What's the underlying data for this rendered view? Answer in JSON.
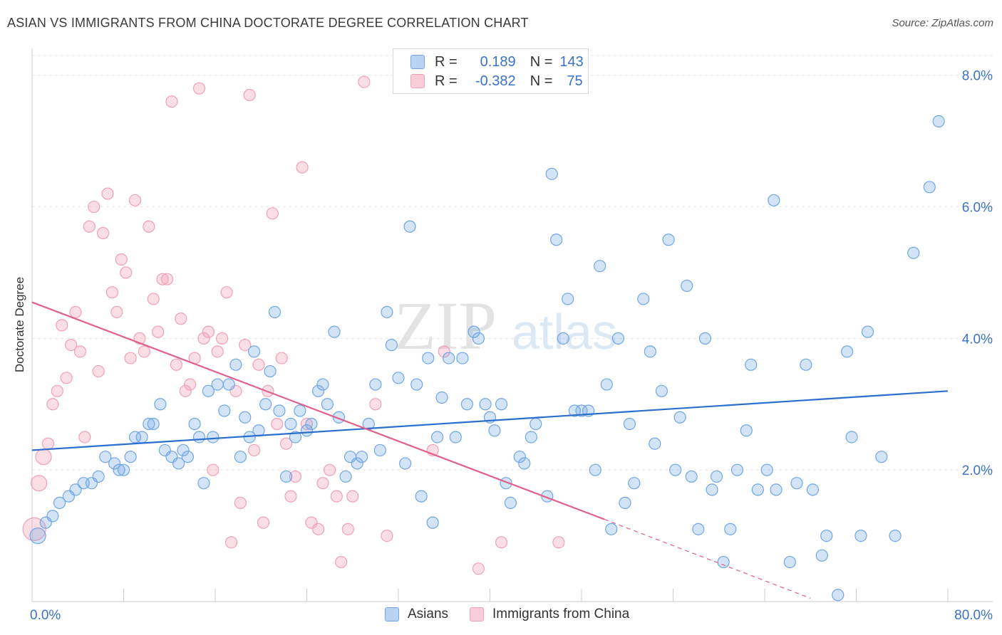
{
  "title": "ASIAN VS IMMIGRANTS FROM CHINA DOCTORATE DEGREE CORRELATION CHART",
  "source": "Source: ZipAtlas.com",
  "watermark": {
    "zip": "ZIP",
    "atlas": "atlas"
  },
  "colors": {
    "asians": "#6fa6e6",
    "china": "#f0a0b8",
    "asians_line": "#2b6fce",
    "china_line": "#e0608c",
    "axis_text": "#3a73c8"
  },
  "legend": {
    "rows": [
      {
        "r_label": "R =",
        "r_value": "0.189",
        "n_label": "N =",
        "n_value": "143"
      },
      {
        "r_label": "R =",
        "r_value": "-0.382",
        "n_label": "N =",
        "n_value": "75"
      }
    ],
    "bottom": [
      "Asians",
      "Immigrants from China"
    ]
  },
  "chart_data": {
    "type": "scatter",
    "title": "ASIAN VS IMMIGRANTS FROM CHINA DOCTORATE DEGREE CORRELATION CHART",
    "xlabel": "",
    "ylabel": "Doctorate Degree",
    "xlim": [
      0,
      80
    ],
    "ylim": [
      0,
      8.3
    ],
    "x_tick_labels": [
      "0.0%",
      "80.0%"
    ],
    "y_tick_labels": [
      "2.0%",
      "4.0%",
      "6.0%",
      "8.0%"
    ],
    "y_ticks": [
      2,
      4,
      6,
      8
    ],
    "grid": true,
    "legend_position": "top-center",
    "series": [
      {
        "name": "Asians",
        "trend": {
          "x0": 0,
          "y0": 2.3,
          "x1": 80,
          "y1": 3.2
        },
        "points": [
          [
            0.5,
            1.0
          ],
          [
            1.2,
            1.2
          ],
          [
            1.8,
            1.3
          ],
          [
            2.4,
            1.5
          ],
          [
            3.2,
            1.6
          ],
          [
            3.8,
            1.7
          ],
          [
            4.5,
            1.8
          ],
          [
            5.2,
            1.8
          ],
          [
            5.8,
            1.9
          ],
          [
            6.4,
            2.2
          ],
          [
            7.2,
            2.1
          ],
          [
            7.6,
            2.0
          ],
          [
            8.0,
            2.0
          ],
          [
            8.6,
            2.2
          ],
          [
            9.0,
            2.5
          ],
          [
            9.6,
            2.5
          ],
          [
            10.2,
            2.7
          ],
          [
            10.6,
            2.7
          ],
          [
            11.2,
            3.0
          ],
          [
            11.6,
            2.3
          ],
          [
            12.2,
            2.2
          ],
          [
            12.8,
            2.1
          ],
          [
            13.2,
            2.3
          ],
          [
            13.6,
            2.2
          ],
          [
            14.2,
            2.7
          ],
          [
            14.6,
            2.5
          ],
          [
            15.0,
            1.8
          ],
          [
            15.4,
            3.2
          ],
          [
            15.8,
            2.5
          ],
          [
            16.2,
            3.3
          ],
          [
            16.8,
            2.9
          ],
          [
            17.2,
            3.3
          ],
          [
            17.8,
            3.6
          ],
          [
            18.2,
            2.2
          ],
          [
            18.6,
            2.8
          ],
          [
            19.0,
            2.5
          ],
          [
            19.4,
            3.8
          ],
          [
            19.8,
            2.6
          ],
          [
            20.4,
            3.0
          ],
          [
            20.8,
            3.5
          ],
          [
            21.2,
            4.4
          ],
          [
            21.6,
            2.9
          ],
          [
            22.2,
            1.9
          ],
          [
            22.6,
            2.7
          ],
          [
            23.0,
            2.5
          ],
          [
            23.4,
            2.9
          ],
          [
            24.0,
            2.6
          ],
          [
            24.4,
            2.7
          ],
          [
            25.0,
            3.2
          ],
          [
            25.4,
            3.3
          ],
          [
            25.8,
            3.0
          ],
          [
            26.4,
            4.1
          ],
          [
            26.8,
            2.8
          ],
          [
            27.4,
            1.9
          ],
          [
            27.8,
            2.2
          ],
          [
            28.4,
            2.1
          ],
          [
            28.8,
            2.2
          ],
          [
            29.4,
            2.7
          ],
          [
            30.0,
            3.3
          ],
          [
            30.4,
            2.3
          ],
          [
            31.0,
            4.4
          ],
          [
            31.4,
            3.9
          ],
          [
            32.0,
            3.4
          ],
          [
            32.6,
            2.1
          ],
          [
            33.0,
            5.7
          ],
          [
            33.6,
            3.3
          ],
          [
            34.0,
            1.6
          ],
          [
            34.6,
            3.7
          ],
          [
            35.0,
            1.2
          ],
          [
            35.4,
            2.5
          ],
          [
            35.8,
            3.1
          ],
          [
            36.4,
            3.7
          ],
          [
            37.0,
            2.5
          ],
          [
            37.6,
            3.7
          ],
          [
            38.0,
            3.0
          ],
          [
            38.6,
            4.1
          ],
          [
            39.0,
            4.0
          ],
          [
            39.6,
            3.0
          ],
          [
            40.0,
            2.8
          ],
          [
            40.4,
            2.6
          ],
          [
            41.0,
            3.0
          ],
          [
            41.4,
            1.8
          ],
          [
            41.8,
            1.5
          ],
          [
            42.6,
            2.2
          ],
          [
            43.0,
            2.1
          ],
          [
            43.6,
            2.5
          ],
          [
            44.0,
            2.7
          ],
          [
            45.0,
            1.6
          ],
          [
            45.4,
            6.5
          ],
          [
            45.8,
            5.5
          ],
          [
            46.4,
            4.0
          ],
          [
            46.8,
            4.6
          ],
          [
            47.4,
            2.9
          ],
          [
            48.0,
            2.9
          ],
          [
            48.6,
            2.9
          ],
          [
            49.2,
            2.0
          ],
          [
            49.6,
            5.1
          ],
          [
            50.2,
            3.3
          ],
          [
            50.6,
            1.1
          ],
          [
            51.2,
            4.0
          ],
          [
            51.8,
            1.5
          ],
          [
            52.2,
            2.7
          ],
          [
            52.6,
            1.8
          ],
          [
            53.4,
            4.6
          ],
          [
            54.0,
            3.8
          ],
          [
            54.4,
            2.4
          ],
          [
            55.0,
            3.2
          ],
          [
            55.6,
            5.5
          ],
          [
            56.2,
            2.0
          ],
          [
            56.6,
            2.8
          ],
          [
            57.2,
            4.8
          ],
          [
            57.6,
            1.9
          ],
          [
            58.2,
            1.1
          ],
          [
            58.8,
            4.0
          ],
          [
            59.4,
            1.7
          ],
          [
            59.8,
            1.9
          ],
          [
            60.4,
            0.6
          ],
          [
            61.0,
            1.1
          ],
          [
            61.6,
            2.0
          ],
          [
            62.4,
            2.6
          ],
          [
            62.8,
            3.6
          ],
          [
            63.4,
            1.7
          ],
          [
            64.2,
            2.0
          ],
          [
            64.8,
            6.1
          ],
          [
            65.0,
            1.7
          ],
          [
            66.2,
            0.6
          ],
          [
            66.8,
            1.8
          ],
          [
            67.6,
            3.6
          ],
          [
            68.2,
            1.7
          ],
          [
            69.0,
            0.7
          ],
          [
            69.4,
            1.0
          ],
          [
            70.4,
            0.1
          ],
          [
            71.2,
            3.8
          ],
          [
            71.6,
            2.5
          ],
          [
            72.4,
            1.0
          ],
          [
            73.0,
            4.1
          ],
          [
            74.2,
            2.2
          ],
          [
            75.4,
            1.0
          ],
          [
            77.0,
            5.3
          ],
          [
            78.4,
            6.3
          ],
          [
            79.2,
            7.3
          ]
        ]
      },
      {
        "name": "Immigrants from China",
        "trend": {
          "x0": 0,
          "y0": 4.55,
          "x1": 50,
          "y1": 1.25,
          "dash_to_x": 68,
          "dash_to_y": 0.05
        },
        "points": [
          [
            0.2,
            1.1
          ],
          [
            0.6,
            1.8
          ],
          [
            1.0,
            2.2
          ],
          [
            1.4,
            2.4
          ],
          [
            1.8,
            3.0
          ],
          [
            2.2,
            3.2
          ],
          [
            2.6,
            4.2
          ],
          [
            3.0,
            3.4
          ],
          [
            3.4,
            3.9
          ],
          [
            3.8,
            4.4
          ],
          [
            4.2,
            3.8
          ],
          [
            4.6,
            2.5
          ],
          [
            5.0,
            5.7
          ],
          [
            5.4,
            6.0
          ],
          [
            5.8,
            3.5
          ],
          [
            6.2,
            5.6
          ],
          [
            6.6,
            6.2
          ],
          [
            7.0,
            4.7
          ],
          [
            7.4,
            4.4
          ],
          [
            7.8,
            5.2
          ],
          [
            8.2,
            5.0
          ],
          [
            8.6,
            3.7
          ],
          [
            9.0,
            6.1
          ],
          [
            9.4,
            4.0
          ],
          [
            9.8,
            3.8
          ],
          [
            10.2,
            5.7
          ],
          [
            10.6,
            4.6
          ],
          [
            11.0,
            4.1
          ],
          [
            11.4,
            4.9
          ],
          [
            11.8,
            4.9
          ],
          [
            12.2,
            7.6
          ],
          [
            12.6,
            3.6
          ],
          [
            13.0,
            4.3
          ],
          [
            13.4,
            3.2
          ],
          [
            13.8,
            3.3
          ],
          [
            14.2,
            3.7
          ],
          [
            14.6,
            7.8
          ],
          [
            15.0,
            4.0
          ],
          [
            15.4,
            4.1
          ],
          [
            15.8,
            2.0
          ],
          [
            16.2,
            3.8
          ],
          [
            16.6,
            4.0
          ],
          [
            17.0,
            4.7
          ],
          [
            17.4,
            0.9
          ],
          [
            17.8,
            3.2
          ],
          [
            18.2,
            1.5
          ],
          [
            18.6,
            3.9
          ],
          [
            19.0,
            7.7
          ],
          [
            19.4,
            2.3
          ],
          [
            19.8,
            3.6
          ],
          [
            20.2,
            1.2
          ],
          [
            20.6,
            3.2
          ],
          [
            21.0,
            5.9
          ],
          [
            21.4,
            2.7
          ],
          [
            21.8,
            3.7
          ],
          [
            22.2,
            2.4
          ],
          [
            22.6,
            1.6
          ],
          [
            23.0,
            1.9
          ],
          [
            23.6,
            6.6
          ],
          [
            24.0,
            2.7
          ],
          [
            24.4,
            1.2
          ],
          [
            25.0,
            1.1
          ],
          [
            25.4,
            1.8
          ],
          [
            26.0,
            2.0
          ],
          [
            26.6,
            1.6
          ],
          [
            27.0,
            0.6
          ],
          [
            27.6,
            1.1
          ],
          [
            28.0,
            1.6
          ],
          [
            29.0,
            7.9
          ],
          [
            30.0,
            3.0
          ],
          [
            31.0,
            1.0
          ],
          [
            36.0,
            3.8
          ],
          [
            35.0,
            2.3
          ],
          [
            39.0,
            0.5
          ],
          [
            41.0,
            0.9
          ],
          [
            46.0,
            0.9
          ]
        ]
      }
    ]
  }
}
